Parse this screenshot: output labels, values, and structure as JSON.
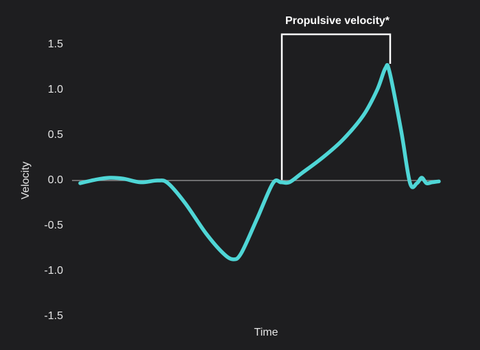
{
  "chart_data": {
    "type": "line",
    "annotation": "Propulsive velocity*",
    "xlabel": "Time",
    "ylabel": "Velocity",
    "x": [
      12,
      35,
      55,
      75,
      100,
      125,
      140,
      165,
      195,
      220,
      235,
      247,
      270,
      293,
      305,
      317,
      335,
      365,
      395,
      425,
      445,
      457,
      463,
      480,
      493,
      503,
      510,
      517,
      525,
      535
    ],
    "values": [
      -0.03,
      0.01,
      0.03,
      0.02,
      -0.02,
      0.0,
      -0.03,
      -0.25,
      -0.58,
      -0.8,
      -0.87,
      -0.8,
      -0.42,
      -0.03,
      -0.02,
      -0.02,
      0.08,
      0.25,
      0.45,
      0.72,
      1.0,
      1.24,
      1.2,
      0.55,
      -0.03,
      -0.03,
      0.03,
      -0.03,
      -0.02,
      -0.01
    ],
    "color": "#4fd6d6",
    "xlim": [
      0,
      535
    ],
    "ylim": [
      -1.5,
      1.5
    ],
    "yticks": [
      1.5,
      {
        "value": 1,
        "label": "1.0"
      },
      0.5,
      {
        "value": 0,
        "label": "0.0"
      },
      -0.5,
      {
        "value": -1,
        "label": "-1.0"
      },
      -1.5
    ]
  }
}
